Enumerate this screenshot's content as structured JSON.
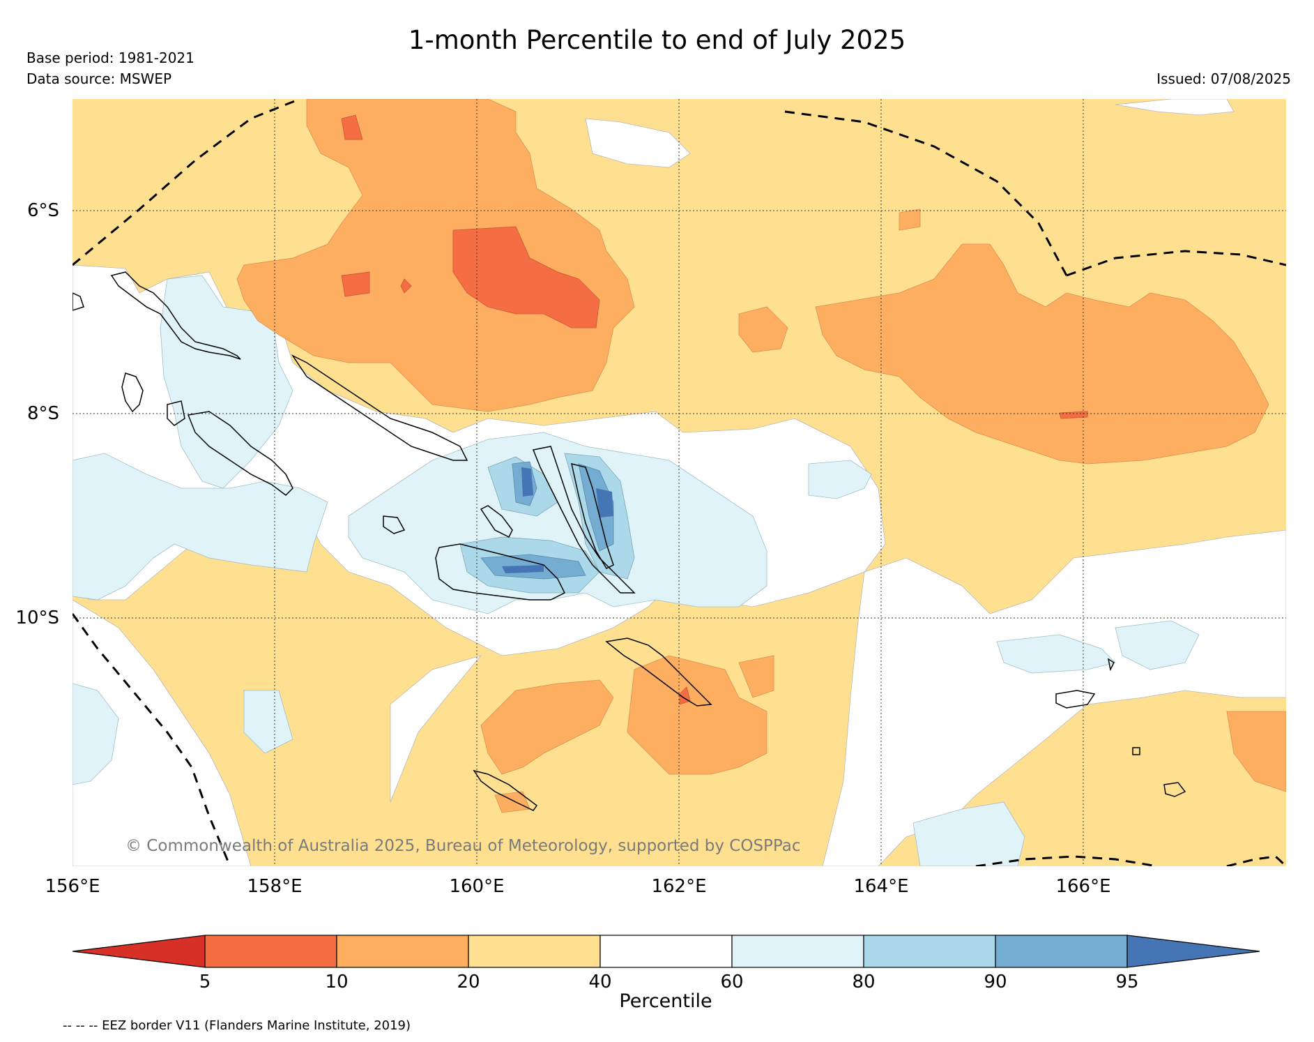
{
  "title": "1-month Percentile to end of July 2025",
  "meta": {
    "base_period": "Base period: 1981-2021",
    "data_source": "Data source: MSWEP",
    "issued": "Issued: 07/08/2025"
  },
  "map": {
    "lon_labels": [
      "156°E",
      "158°E",
      "160°E",
      "162°E",
      "164°E",
      "166°E"
    ],
    "lat_labels": [
      "6°S",
      "8°S",
      "10°S"
    ],
    "copyright": "© Commonwealth of Australia 2025, Bureau of Meteorology, supported by COSPPac"
  },
  "colorbar": {
    "label": "Percentile",
    "ticks": [
      "5",
      "10",
      "20",
      "40",
      "60",
      "80",
      "90",
      "95"
    ],
    "colors": [
      "#d73027",
      "#f46d43",
      "#fdae61",
      "#fee090",
      "#ffffff",
      "#e0f3f8",
      "#abd9e9",
      "#74add1",
      "#4575b4"
    ]
  },
  "legend_note": "-- -- -- EEZ border V11 (Flanders Marine Institute, 2019)"
}
